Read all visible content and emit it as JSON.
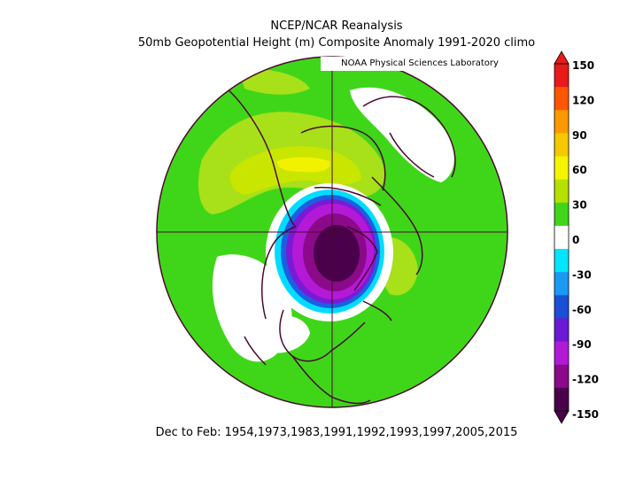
{
  "title_line1": "NCEP/NCAR Reanalysis",
  "title_line2": "50mb Geopotential Height (m) Composite Anomaly 1991-2020 climo",
  "credit": "NOAA Physical Sciences Laboratory",
  "footer": "Dec to Feb: 1954,1973,1983,1991,1992,1993,1997,2005,2015",
  "colorbar": {
    "levels": [
      "150",
      "120",
      "90",
      "60",
      "30",
      "0",
      "-30",
      "-60",
      "-90",
      "-120",
      "-150"
    ],
    "colors": [
      "#e81a1a",
      "#ff5500",
      "#ff9900",
      "#f5c800",
      "#f5f500",
      "#b5e000",
      "#3fd61a",
      "#ffffff",
      "#00e5ff",
      "#1a99f5",
      "#1a4fd6",
      "#6a1ad6",
      "#b21ad6",
      "#8a0a8a",
      "#4a004a"
    ]
  },
  "map_colors": {
    "ocean_green": "#3fd61a",
    "light_green": "#a8e019",
    "yellow_green": "#c9e600",
    "yellow": "#f2f200",
    "white": "#ffffff",
    "cyan": "#00dcff",
    "blue": "#1a60e0",
    "purple": "#7a1ad6",
    "magenta": "#b41ad6",
    "dark_purple": "#4a004a",
    "coast": "#4b0a2e"
  }
}
